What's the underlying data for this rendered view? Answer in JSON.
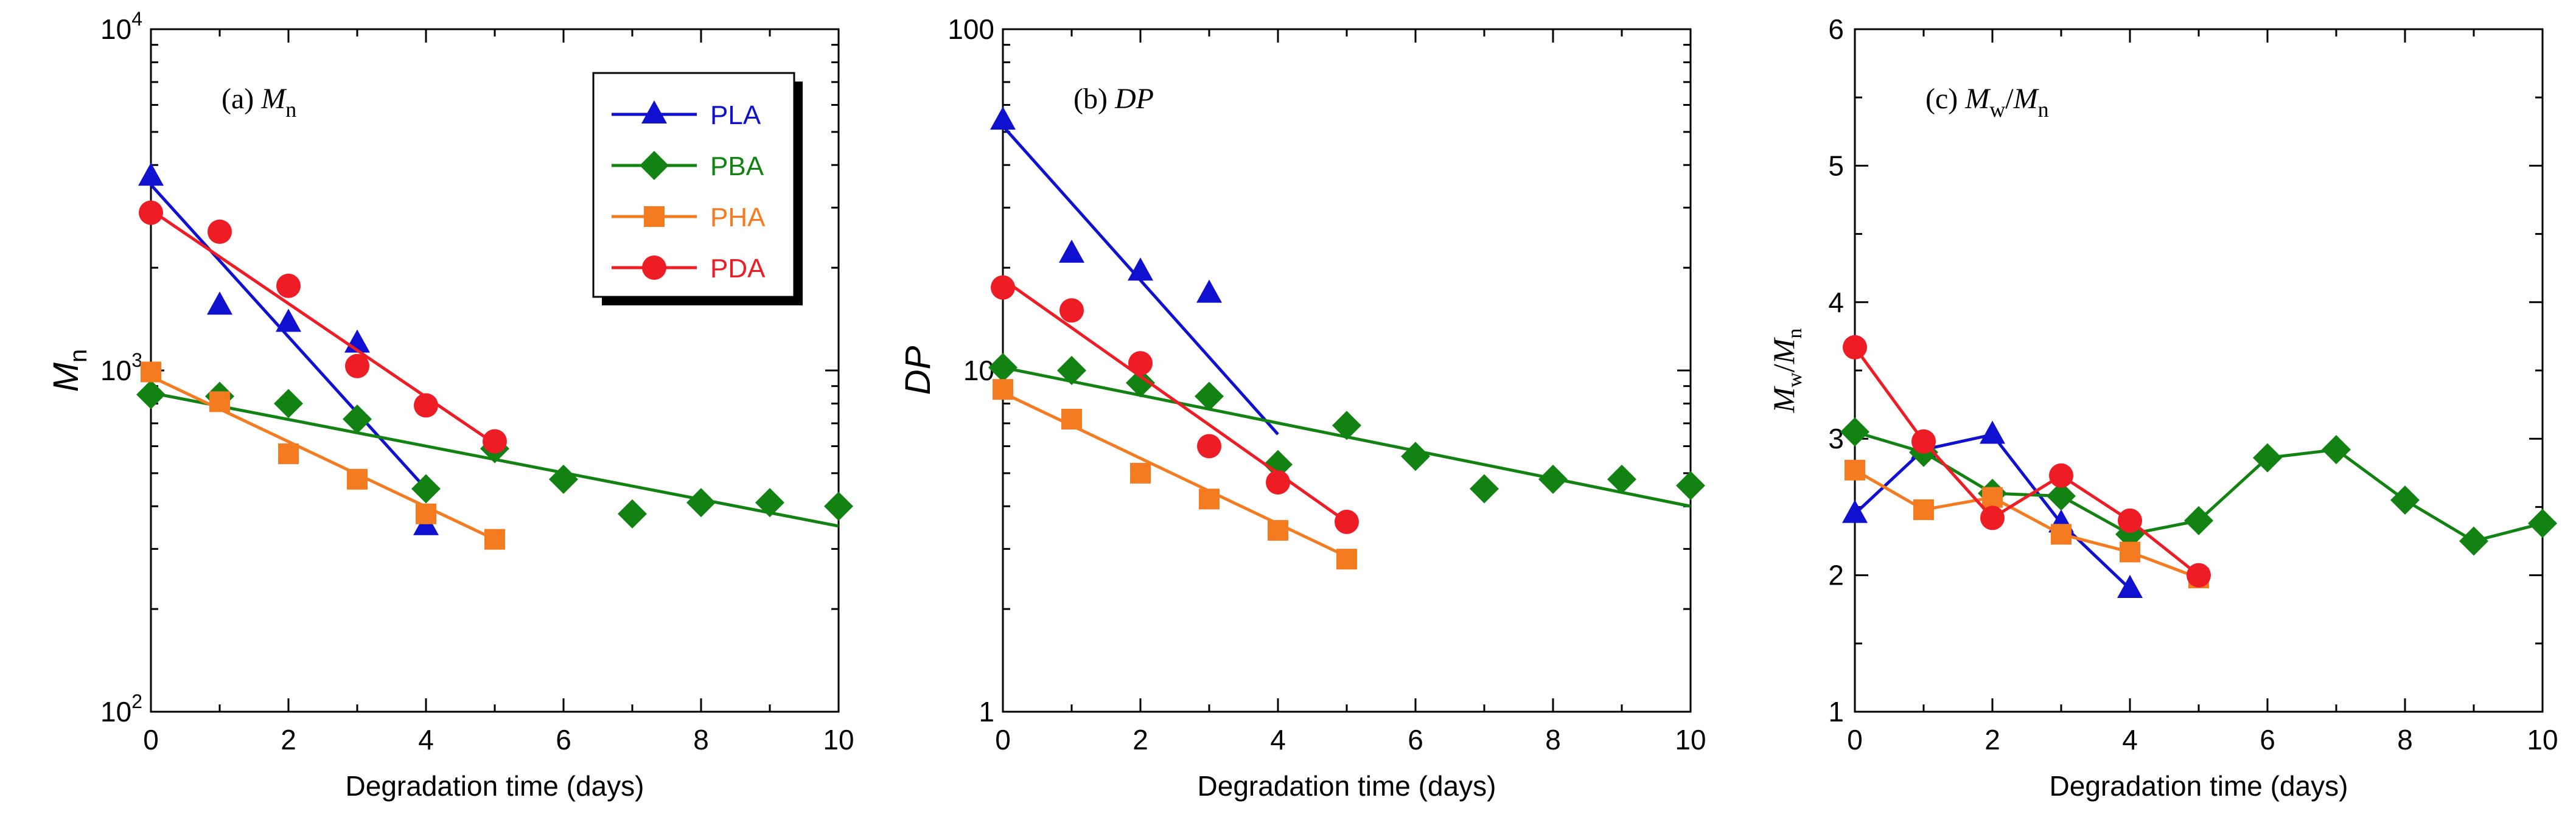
{
  "legend": [
    {
      "label": "PLA",
      "color": "#1010d0",
      "marker": "triangle"
    },
    {
      "label": "PBA",
      "color": "#128212",
      "marker": "diamond"
    },
    {
      "label": "PHA",
      "color": "#f57b20",
      "marker": "square"
    },
    {
      "label": "PDA",
      "color": "#ee1c25",
      "marker": "circle"
    }
  ],
  "chart_data": [
    {
      "type": "scatter",
      "yscale": "log",
      "panel_label": "(a)",
      "title": "M",
      "title_sub": "n",
      "ylabel": "M",
      "ylabel_sub": "n",
      "xlabel": "Degradation time (days)",
      "xlim": [
        0,
        10
      ],
      "ylim": [
        100,
        10000
      ],
      "xticks": [
        0,
        2,
        4,
        6,
        8,
        10
      ],
      "xtick_labels": [
        "0",
        "2",
        "4",
        "6",
        "8",
        "10"
      ],
      "ytick_labels": [
        {
          "base": "10",
          "exp": "2"
        },
        {
          "base": "10",
          "exp": "3"
        },
        {
          "base": "10",
          "exp": "4"
        }
      ],
      "series": [
        {
          "name": "PLA",
          "x": [
            0,
            1,
            2,
            3,
            4
          ],
          "y": [
            3700,
            1550,
            1380,
            1200,
            350
          ],
          "fit": [
            [
              0,
              3500
            ],
            [
              4,
              450
            ]
          ]
        },
        {
          "name": "PBA",
          "x": [
            0,
            1,
            2,
            3,
            4,
            5,
            6,
            7,
            8,
            9,
            10
          ],
          "y": [
            850,
            840,
            800,
            720,
            450,
            590,
            480,
            380,
            410,
            410,
            400
          ],
          "fit": [
            [
              0,
              860
            ],
            [
              10,
              350
            ]
          ]
        },
        {
          "name": "PHA",
          "x": [
            0,
            1,
            2,
            3,
            4,
            5
          ],
          "y": [
            990,
            810,
            570,
            480,
            380,
            320
          ],
          "fit": [
            [
              0,
              960
            ],
            [
              5,
              320
            ]
          ]
        },
        {
          "name": "PDA",
          "x": [
            0,
            1,
            2,
            3,
            4,
            5
          ],
          "y": [
            2900,
            2550,
            1770,
            1030,
            790,
            620
          ],
          "fit": [
            [
              0,
              2950
            ],
            [
              5,
              610
            ]
          ]
        }
      ]
    },
    {
      "type": "scatter",
      "yscale": "log",
      "panel_label": "(b)",
      "title": "DP",
      "title_sub": "",
      "ylabel": "DP",
      "ylabel_sub": "",
      "xlabel": "Degradation time (days)",
      "xlim": [
        0,
        10
      ],
      "ylim": [
        1,
        100
      ],
      "xticks": [
        0,
        2,
        4,
        6,
        8,
        10
      ],
      "xtick_labels": [
        "0",
        "2",
        "4",
        "6",
        "8",
        "10"
      ],
      "ytick_labels": [
        {
          "base": "1",
          "exp": ""
        },
        {
          "base": "10",
          "exp": ""
        },
        {
          "base": "100",
          "exp": ""
        }
      ],
      "series": [
        {
          "name": "PLA",
          "x": [
            0,
            1,
            2,
            3
          ],
          "y": [
            54,
            22,
            19.5,
            16.8
          ],
          "fit": [
            [
              0,
              52
            ],
            [
              4,
              6.5
            ]
          ]
        },
        {
          "name": "PBA",
          "x": [
            0,
            1,
            2,
            3,
            4,
            5,
            6,
            7,
            8,
            9,
            10
          ],
          "y": [
            10.2,
            10,
            9.2,
            8.4,
            5.3,
            6.9,
            5.6,
            4.5,
            4.8,
            4.8,
            4.6
          ],
          "fit": [
            [
              0,
              10.2
            ],
            [
              10,
              4.0
            ]
          ]
        },
        {
          "name": "PHA",
          "x": [
            0,
            1,
            2,
            3,
            4,
            5
          ],
          "y": [
            8.8,
            7.2,
            5.0,
            4.2,
            3.4,
            2.8
          ],
          "fit": [
            [
              0,
              8.6
            ],
            [
              5,
              2.85
            ]
          ]
        },
        {
          "name": "PDA",
          "x": [
            0,
            1,
            2,
            3,
            4,
            5
          ],
          "y": [
            17.5,
            15,
            10.5,
            6.0,
            4.7,
            3.6
          ],
          "fit": [
            [
              0,
              18.5
            ],
            [
              5,
              3.6
            ]
          ]
        }
      ]
    },
    {
      "type": "line",
      "yscale": "linear",
      "panel_label": "(c)",
      "title": "M",
      "title_sub": "w",
      "title2": "M",
      "title2_sub": "n",
      "ylabel": "M",
      "ylabel_sub": "w",
      "ylabel2": "M",
      "ylabel2_sub": "n",
      "xlabel": "Degradation time (days)",
      "xlim": [
        0,
        10
      ],
      "ylim": [
        1,
        6
      ],
      "xticks": [
        0,
        2,
        4,
        6,
        8,
        10
      ],
      "xtick_labels": [
        "0",
        "2",
        "4",
        "6",
        "8",
        "10"
      ],
      "yticks": [
        1,
        2,
        3,
        4,
        5,
        6
      ],
      "ytick_labels": [
        "1",
        "2",
        "3",
        "4",
        "5",
        "6"
      ],
      "series": [
        {
          "name": "PLA",
          "x": [
            0,
            1,
            2,
            3,
            4
          ],
          "y": [
            2.45,
            2.92,
            3.03,
            2.38,
            1.9
          ]
        },
        {
          "name": "PBA",
          "x": [
            0,
            1,
            2,
            3,
            4,
            5,
            6,
            7,
            8,
            9,
            10
          ],
          "y": [
            3.05,
            2.9,
            2.6,
            2.58,
            2.3,
            2.4,
            2.86,
            2.92,
            2.55,
            2.25,
            2.38
          ]
        },
        {
          "name": "PHA",
          "x": [
            0,
            1,
            2,
            3,
            4,
            5
          ],
          "y": [
            2.77,
            2.48,
            2.57,
            2.3,
            2.17,
            1.98
          ]
        },
        {
          "name": "PDA",
          "x": [
            0,
            1,
            2,
            3,
            4,
            5
          ],
          "y": [
            3.67,
            2.98,
            2.42,
            2.73,
            2.4,
            2.0
          ]
        }
      ]
    }
  ]
}
